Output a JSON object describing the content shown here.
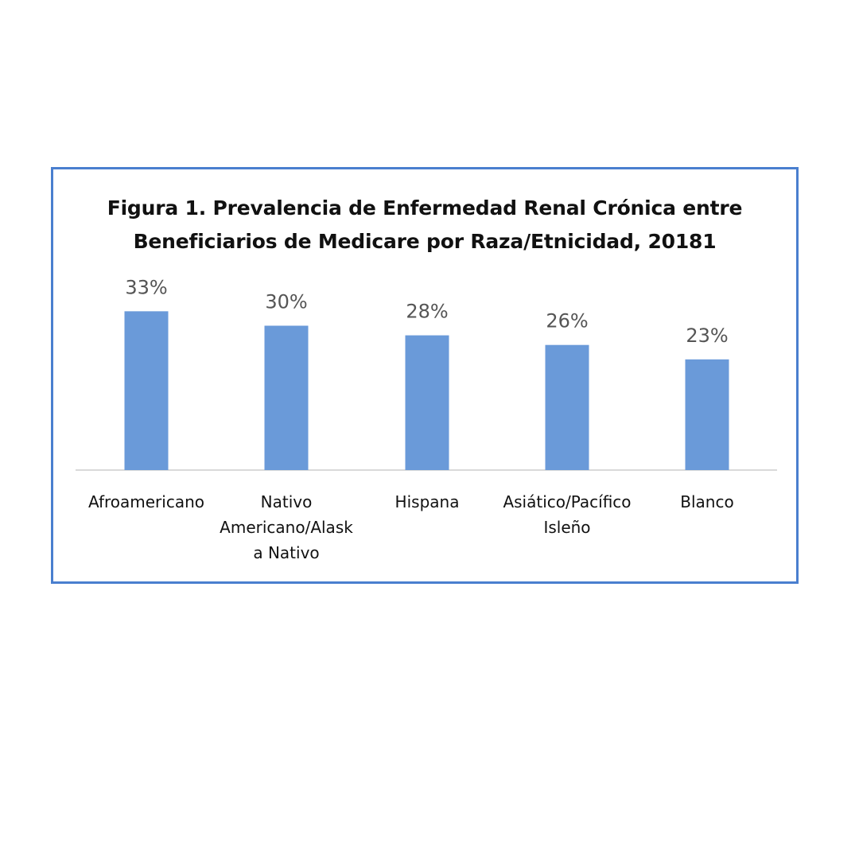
{
  "chart_data": {
    "type": "bar",
    "title_lines": [
      "Figura 1. Prevalencia de Enfermedad Renal Crónica entre",
      "Beneficiarios de Medicare por Raza/Etnicidad, 20181"
    ],
    "categories": [
      [
        "Afroamericano"
      ],
      [
        "Nativo",
        "Americano/Alask",
        "a Nativo"
      ],
      [
        "Hispana"
      ],
      [
        "Asiático/Pacífico",
        "Isleño"
      ],
      [
        "Blanco"
      ]
    ],
    "values": [
      33,
      30,
      28,
      26,
      23
    ],
    "data_labels": [
      "33%",
      "30%",
      "28%",
      "26%",
      "23%"
    ],
    "ylim": [
      0,
      40
    ],
    "grid": false,
    "legend": "none",
    "colors": {
      "bar": "#6a9ad9",
      "frame": "#4a7fcf",
      "axis": "#d9d9d9",
      "label": "#555555"
    }
  }
}
